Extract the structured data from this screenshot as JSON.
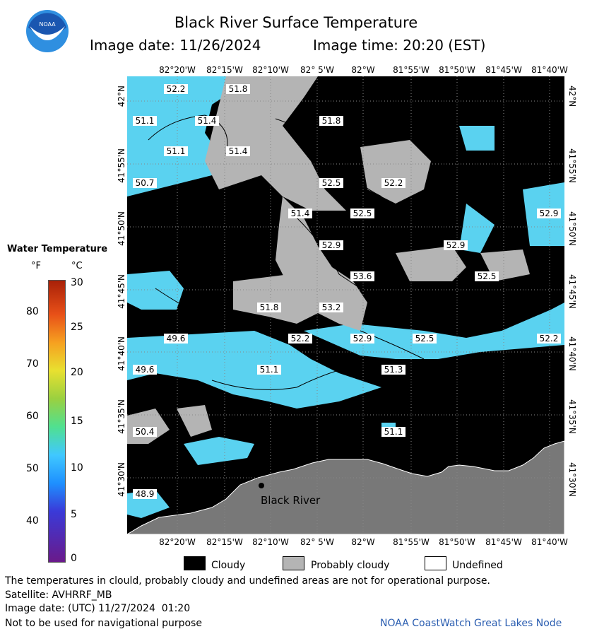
{
  "header": {
    "title": "Black River Surface Temperature",
    "image_date": "Image date: 11/26/2024",
    "image_time": "Image time: 20:20 (EST)"
  },
  "logo": {
    "text": "NOAA",
    "colors": {
      "sky": "#1a56b0",
      "water": "#2f8fe0",
      "gull": "#ffffff"
    }
  },
  "map": {
    "lon_labels": [
      "82°20'W",
      "82°15'W",
      "82°10'W",
      "82° 5'W",
      "82°W",
      "81°55'W",
      "81°50'W",
      "81°45'W",
      "81°40'W"
    ],
    "lat_labels": [
      "42°N",
      "41°55'N",
      "41°50'N",
      "41°45'N",
      "41°40'N",
      "41°35'N",
      "41°30'N"
    ],
    "temp_labels": [
      {
        "v": "52.2"
      },
      {
        "v": "51.8"
      },
      {
        "v": "51.1"
      },
      {
        "v": "51.4"
      },
      {
        "v": "51.8"
      },
      {
        "v": "51.1"
      },
      {
        "v": "51.4"
      },
      {
        "v": "50.7"
      },
      {
        "v": "52.5"
      },
      {
        "v": "52.2"
      },
      {
        "v": "52.5"
      },
      {
        "v": "51.4"
      },
      {
        "v": "52.9"
      },
      {
        "v": "52.9"
      },
      {
        "v": "52.9"
      },
      {
        "v": "53.6"
      },
      {
        "v": "52.5"
      },
      {
        "v": "51.8"
      },
      {
        "v": "53.2"
      },
      {
        "v": "49.6"
      },
      {
        "v": "52.2"
      },
      {
        "v": "52.9"
      },
      {
        "v": "52.5"
      },
      {
        "v": "52.2"
      },
      {
        "v": "49.6"
      },
      {
        "v": "51.1"
      },
      {
        "v": "51.3"
      },
      {
        "v": "50.4"
      },
      {
        "v": "51.1"
      },
      {
        "v": "48.9"
      }
    ],
    "place_label": "Black River",
    "colors": {
      "cloud": "#000000",
      "probably_cloudy": "#b4b4b4",
      "land": "#787878",
      "water": "#5ad2f0"
    }
  },
  "legend": {
    "title": "Water Temperature",
    "unit_f": "°F",
    "unit_c": "°C",
    "f_ticks": [
      "80",
      "70",
      "60",
      "50",
      "40"
    ],
    "c_ticks": [
      "30",
      "25",
      "20",
      "15",
      "10",
      "5",
      "0"
    ]
  },
  "key": {
    "cloudy": "Cloudy",
    "probably_cloudy": "Probably cloudy",
    "undefined": "Undefined"
  },
  "footer": {
    "disclaimer": "The temperatures in clould, probably cloudy and undefined areas are not for operational purpose.",
    "satellite": "Satellite: AVHRRF_MB",
    "utc_date": "Image date: (UTC) 11/27/2024  01:20",
    "nav_warning": "Not to be used for navigational purpose",
    "credit": "NOAA CoastWatch Great Lakes Node"
  }
}
